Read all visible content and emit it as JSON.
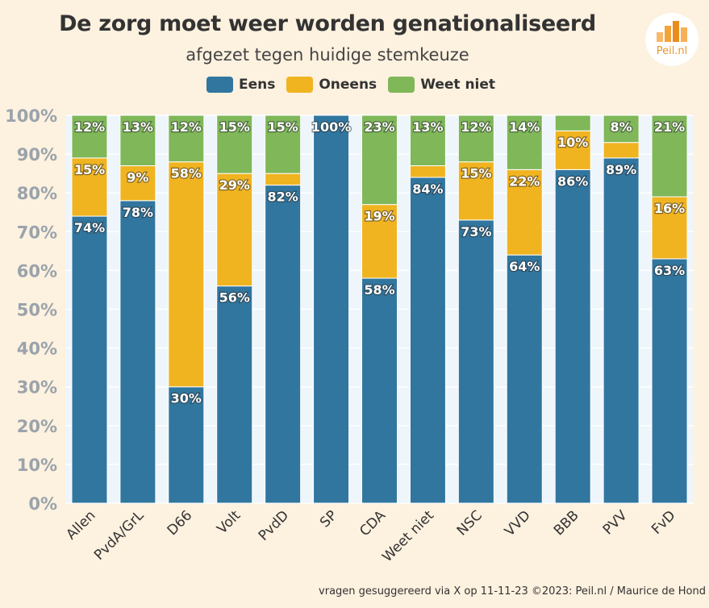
{
  "chart_data": {
    "type": "bar",
    "stacked": true,
    "title": "De zorg moet weer worden genationaliseerd",
    "subtitle": "afgezet tegen huidige stemkeuze",
    "categories": [
      "Allen",
      "PvdA/GrL",
      "D66",
      "Volt",
      "PvdD",
      "SP",
      "CDA",
      "Weet niet",
      "NSC",
      "VVD",
      "BBB",
      "PVV",
      "FvD"
    ],
    "series": [
      {
        "name": "Eens",
        "color": "#31769f",
        "values": [
          74,
          78,
          30,
          56,
          82,
          100,
          58,
          84,
          73,
          64,
          86,
          89,
          63
        ]
      },
      {
        "name": "Oneens",
        "color": "#f0b421",
        "values": [
          15,
          9,
          58,
          29,
          3,
          0,
          19,
          3,
          15,
          22,
          10,
          4,
          16
        ]
      },
      {
        "name": "Weet niet",
        "color": "#7fb759",
        "values": [
          12,
          13,
          12,
          15,
          15,
          0,
          23,
          13,
          12,
          14,
          4,
          8,
          21
        ]
      }
    ],
    "data_labels": {
      "Eens": [
        "74%",
        "78%",
        "30%",
        "56%",
        "82%",
        "100%",
        "58%",
        "84%",
        "73%",
        "64%",
        "86%",
        "89%",
        "63%"
      ],
      "Oneens": [
        "15%",
        "9%",
        "58%",
        "29%",
        "",
        "",
        "19%",
        "",
        "15%",
        "22%",
        "10%",
        "",
        "16%"
      ],
      "Weet niet": [
        "12%",
        "13%",
        "12%",
        "15%",
        "15%",
        "",
        "23%",
        "13%",
        "12%",
        "14%",
        "",
        "8%",
        "21%"
      ]
    },
    "y_ticks": [
      "0%",
      "10%",
      "20%",
      "30%",
      "40%",
      "50%",
      "60%",
      "70%",
      "80%",
      "90%",
      "100%"
    ],
    "ylim": [
      0,
      100
    ],
    "xlabel": "",
    "ylabel": "",
    "legend_position": "top-center"
  },
  "logo_text": "Peil.nl",
  "footer": "vragen gesuggereerd via X op 11-11-23 ©2023: Peil.nl / Maurice de Hond"
}
